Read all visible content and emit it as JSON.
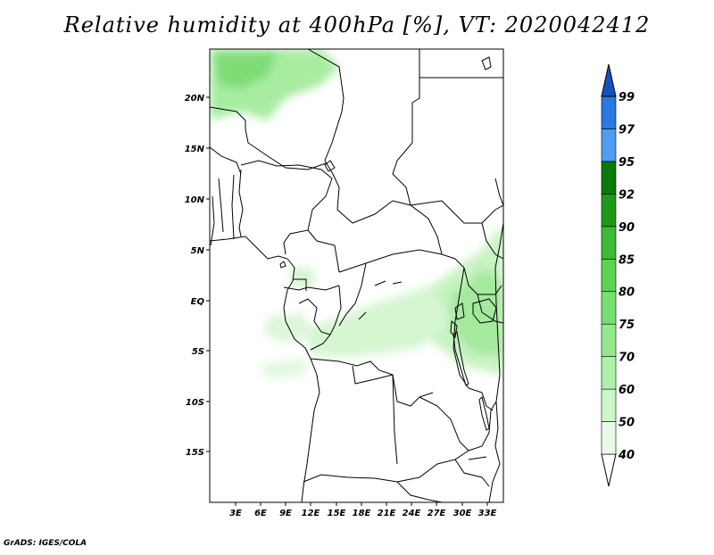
{
  "title": "Relative humidity at 400hPa [%], VT: 2020042412",
  "credit": "GrADS: IGES/COLA",
  "map": {
    "lon_labels": [
      "3E",
      "6E",
      "9E",
      "12E",
      "15E",
      "18E",
      "21E",
      "24E",
      "27E",
      "30E",
      "33E"
    ],
    "lat_labels": [
      "20N",
      "15N",
      "10N",
      "5N",
      "EQ",
      "5S",
      "10S",
      "15S"
    ]
  },
  "colorbar": {
    "levels": [
      "40",
      "50",
      "60",
      "70",
      "75",
      "80",
      "85",
      "90",
      "92",
      "95",
      "97",
      "99"
    ],
    "colors": [
      "#ffffff",
      "#e8fbe6",
      "#ccf5c8",
      "#b0efaa",
      "#94e98c",
      "#78e070",
      "#5ad452",
      "#3cbb36",
      "#1e9a1a",
      "#0a7a08",
      "#4f9cf0",
      "#2a78e0",
      "#1452c0"
    ]
  }
}
